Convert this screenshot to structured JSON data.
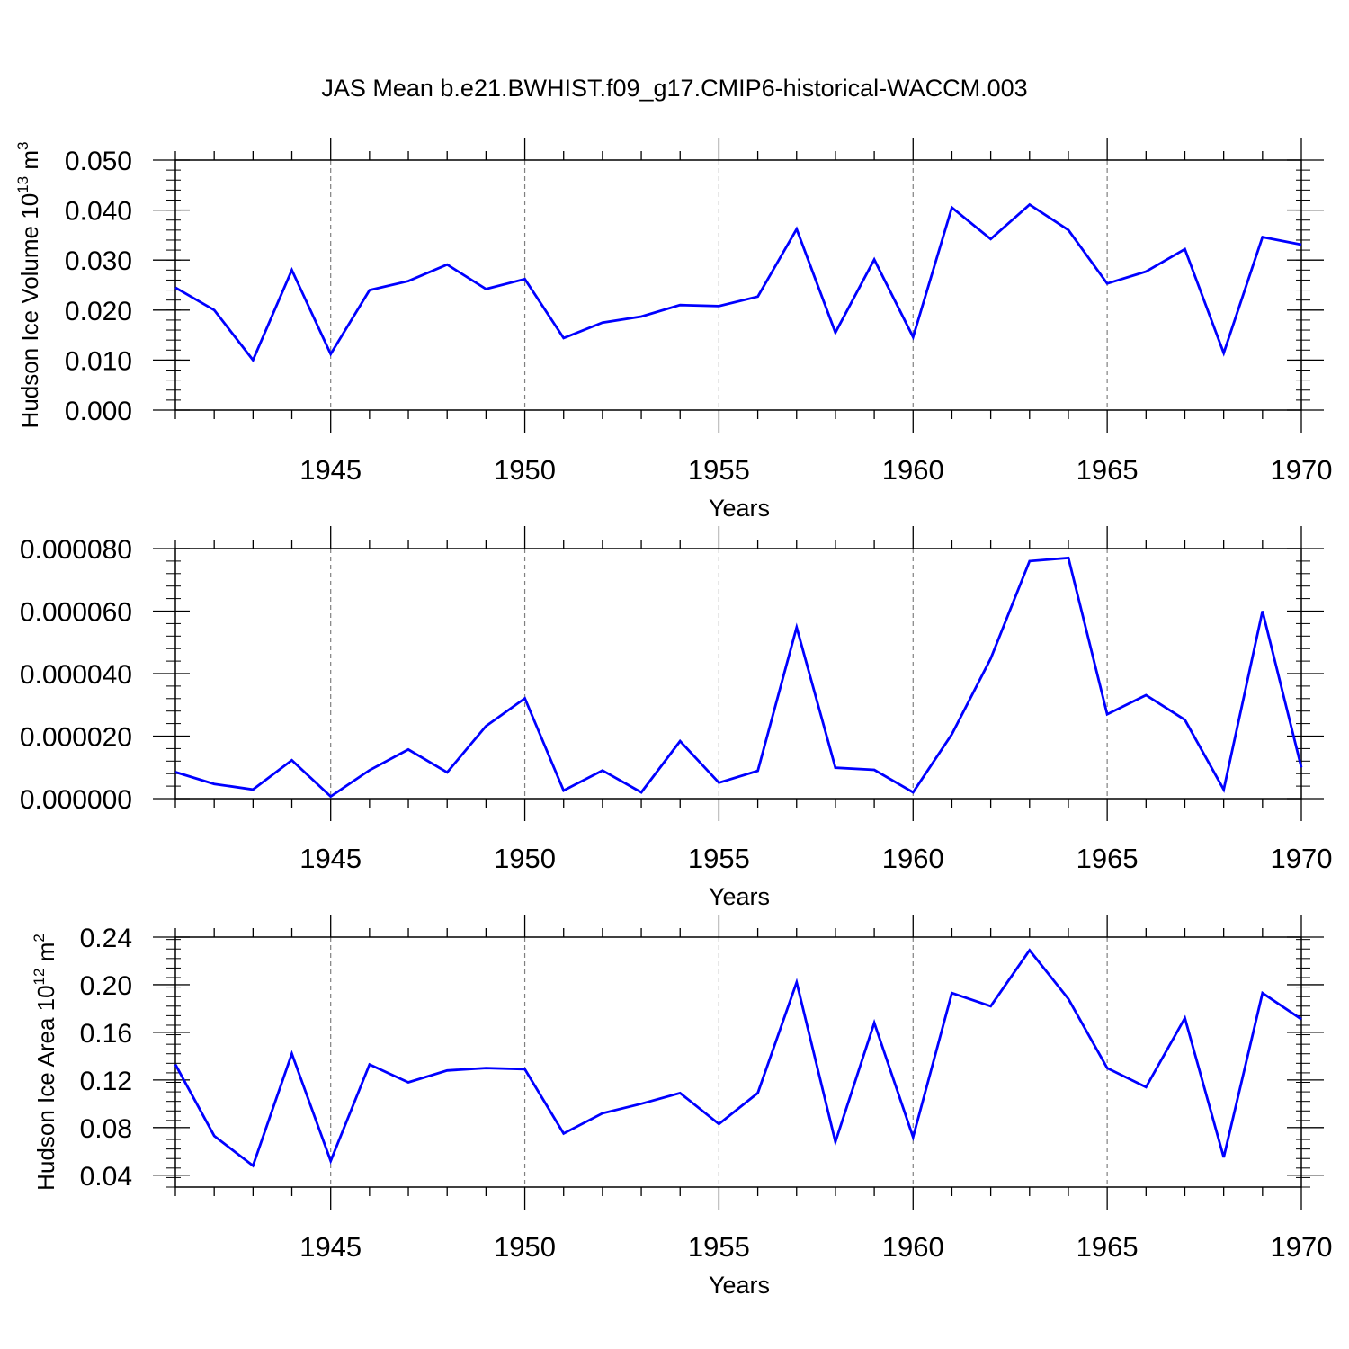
{
  "title": "JAS Mean b.e21.BWHIST.f09_g17.CMIP6-historical-WACCM.003",
  "colors": {
    "line": "#0000ff",
    "axis": "#000000",
    "grid": "#808080"
  },
  "chart_data": [
    {
      "type": "line",
      "ylabel_main": "Hudson Ice Volume 10",
      "ylabel_sup": "13",
      "ylabel_unit": " m",
      "ylabel_unit_sup": "3",
      "xlabel": "Years",
      "xlim": [
        1941,
        1970
      ],
      "ylim": [
        0,
        0.05
      ],
      "yticks": [
        0,
        0.01,
        0.02,
        0.03,
        0.04,
        0.05
      ],
      "ytick_labels": [
        "0.000",
        "0.010",
        "0.020",
        "0.030",
        "0.040",
        "0.050"
      ],
      "xticks": [
        1945,
        1950,
        1955,
        1960,
        1965,
        1970
      ],
      "xtick_labels": [
        "1945",
        "1950",
        "1955",
        "1960",
        "1965",
        "1970"
      ],
      "grid": "vertical dashed at major x ticks",
      "x": [
        1941,
        1942,
        1943,
        1944,
        1945,
        1946,
        1947,
        1948,
        1949,
        1950,
        1951,
        1952,
        1953,
        1954,
        1955,
        1956,
        1957,
        1958,
        1959,
        1960,
        1961,
        1962,
        1963,
        1964,
        1965,
        1966,
        1967,
        1968,
        1969,
        1970
      ],
      "values": [
        0.0245,
        0.02,
        0.01,
        0.028,
        0.0112,
        0.024,
        0.0258,
        0.0291,
        0.0242,
        0.0262,
        0.0144,
        0.0175,
        0.0187,
        0.021,
        0.0208,
        0.0227,
        0.0362,
        0.0155,
        0.0301,
        0.0146,
        0.0405,
        0.0342,
        0.0411,
        0.036,
        0.0253,
        0.0277,
        0.0322,
        0.0114,
        0.0346,
        0.0331
      ]
    },
    {
      "type": "line",
      "ylabel_main": "",
      "ylabel_sup": "",
      "ylabel_unit": "",
      "ylabel_unit_sup": "",
      "xlabel": "Years",
      "xlim": [
        1941,
        1970
      ],
      "ylim": [
        0,
        8e-05
      ],
      "yticks": [
        0,
        2e-05,
        4e-05,
        6e-05,
        8e-05
      ],
      "ytick_labels": [
        "0.000000",
        "0.000020",
        "0.000040",
        "0.000060",
        "0.000080"
      ],
      "xticks": [
        1945,
        1950,
        1955,
        1960,
        1965,
        1970
      ],
      "xtick_labels": [
        "1945",
        "1950",
        "1955",
        "1960",
        "1965",
        "1970"
      ],
      "grid": "vertical dashed at major x ticks",
      "x": [
        1941,
        1942,
        1943,
        1944,
        1945,
        1946,
        1947,
        1948,
        1949,
        1950,
        1951,
        1952,
        1953,
        1954,
        1955,
        1956,
        1957,
        1958,
        1959,
        1960,
        1961,
        1962,
        1963,
        1964,
        1965,
        1966,
        1967,
        1968,
        1969,
        1970
      ],
      "values": [
        8.5e-06,
        4.7e-06,
        2.9e-06,
        1.23e-05,
        7e-07,
        9.1e-06,
        1.57e-05,
        8.4e-06,
        2.32e-05,
        3.21e-05,
        2.6e-06,
        9e-06,
        2e-06,
        1.84e-05,
        5.1e-06,
        8.9e-06,
        5.48e-05,
        9.9e-06,
        9.2e-06,
        2e-06,
        2.06e-05,
        4.48e-05,
        7.6e-05,
        7.7e-05,
        2.7e-05,
        3.31e-05,
        2.52e-05,
        2.9e-06,
        6e-05,
        1e-05
      ]
    },
    {
      "type": "line",
      "ylabel_main": "Hudson Ice Area 10",
      "ylabel_sup": "12",
      "ylabel_unit": " m",
      "ylabel_unit_sup": "2",
      "xlabel": "Years",
      "xlim": [
        1941,
        1970
      ],
      "ylim": [
        0.03,
        0.24
      ],
      "yticks": [
        0.04,
        0.08,
        0.12,
        0.16,
        0.2,
        0.24
      ],
      "ytick_labels": [
        "0.04",
        "0.08",
        "0.12",
        "0.16",
        "0.20",
        "0.24"
      ],
      "xticks": [
        1945,
        1950,
        1955,
        1960,
        1965,
        1970
      ],
      "xtick_labels": [
        "1945",
        "1950",
        "1955",
        "1960",
        "1965",
        "1970"
      ],
      "grid": "vertical dashed at major x ticks",
      "x": [
        1941,
        1942,
        1943,
        1944,
        1945,
        1946,
        1947,
        1948,
        1949,
        1950,
        1951,
        1952,
        1953,
        1954,
        1955,
        1956,
        1957,
        1958,
        1959,
        1960,
        1961,
        1962,
        1963,
        1964,
        1965,
        1966,
        1967,
        1968,
        1969,
        1970
      ],
      "values": [
        0.133,
        0.073,
        0.048,
        0.142,
        0.052,
        0.133,
        0.118,
        0.128,
        0.13,
        0.129,
        0.075,
        0.092,
        0.1,
        0.109,
        0.083,
        0.109,
        0.202,
        0.068,
        0.168,
        0.072,
        0.193,
        0.182,
        0.229,
        0.188,
        0.13,
        0.114,
        0.172,
        0.055,
        0.193,
        0.171
      ]
    }
  ]
}
